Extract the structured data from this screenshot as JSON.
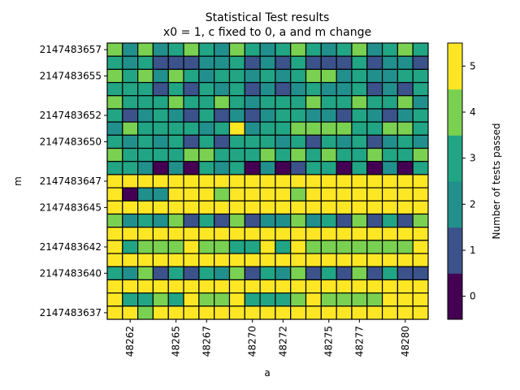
{
  "chart_data": {
    "type": "heatmap",
    "title": "Statistical Test results",
    "subtitle": "x0 = 1, c fixed to 0, a and m change",
    "xlabel": "a",
    "ylabel": "m",
    "x": [
      48261,
      48262,
      48263,
      48264,
      48265,
      48266,
      48267,
      48268,
      48269,
      48270,
      48271,
      48272,
      48273,
      48274,
      48275,
      48276,
      48277,
      48278,
      48279,
      48280,
      48281
    ],
    "y": [
      2147483657,
      2147483656,
      2147483655,
      2147483654,
      2147483653,
      2147483652,
      2147483651,
      2147483650,
      2147483649,
      2147483648,
      2147483647,
      2147483646,
      2147483645,
      2147483644,
      2147483643,
      2147483642,
      2147483641,
      2147483640,
      2147483639,
      2147483638,
      2147483637
    ],
    "x_ticks": [
      48262,
      48265,
      48267,
      48270,
      48272,
      48275,
      48277,
      48280
    ],
    "y_ticks": [
      2147483657,
      2147483655,
      2147483652,
      2147483650,
      2147483647,
      2147483645,
      2147483642,
      2147483640,
      2147483637
    ],
    "values": [
      [
        4,
        2,
        4,
        2,
        3,
        4,
        3,
        2,
        4,
        3,
        2,
        3,
        4,
        3,
        2,
        3,
        4,
        2,
        3,
        4,
        3
      ],
      [
        3,
        2,
        3,
        1,
        1,
        1,
        2,
        2,
        3,
        1,
        2,
        1,
        3,
        1,
        1,
        1,
        3,
        1,
        2,
        2,
        1
      ],
      [
        4,
        3,
        4,
        2,
        4,
        3,
        2,
        3,
        3,
        2,
        3,
        2,
        3,
        4,
        4,
        2,
        3,
        2,
        2,
        3,
        3
      ],
      [
        3,
        3,
        3,
        1,
        3,
        1,
        3,
        2,
        3,
        1,
        2,
        1,
        2,
        3,
        2,
        2,
        3,
        1,
        2,
        1,
        3
      ],
      [
        4,
        3,
        3,
        3,
        4,
        3,
        3,
        4,
        3,
        2,
        3,
        3,
        3,
        4,
        3,
        3,
        4,
        3,
        3,
        4,
        2
      ],
      [
        3,
        1,
        2,
        3,
        2,
        1,
        3,
        1,
        2,
        1,
        2,
        3,
        3,
        2,
        2,
        1,
        3,
        2,
        1,
        2,
        3
      ],
      [
        2,
        4,
        3,
        3,
        3,
        3,
        2,
        3,
        5,
        2,
        3,
        3,
        4,
        4,
        4,
        4,
        3,
        3,
        4,
        4,
        3
      ],
      [
        3,
        2,
        3,
        2,
        3,
        1,
        3,
        1,
        3,
        3,
        3,
        2,
        3,
        1,
        3,
        2,
        3,
        1,
        2,
        3,
        2
      ],
      [
        4,
        3,
        3,
        3,
        3,
        4,
        4,
        3,
        3,
        3,
        4,
        3,
        4,
        3,
        4,
        3,
        3,
        4,
        3,
        3,
        4
      ],
      [
        3,
        3,
        2,
        0,
        2,
        0,
        3,
        2,
        3,
        0,
        2,
        0,
        1,
        3,
        3,
        0,
        3,
        0,
        2,
        0,
        3
      ],
      [
        5,
        5,
        5,
        5,
        5,
        5,
        5,
        5,
        5,
        5,
        5,
        5,
        5,
        5,
        5,
        5,
        5,
        5,
        5,
        5,
        5
      ],
      [
        5,
        0,
        2,
        2,
        5,
        5,
        5,
        4,
        5,
        5,
        5,
        5,
        4,
        5,
        5,
        5,
        5,
        5,
        5,
        5,
        5
      ],
      [
        5,
        5,
        5,
        5,
        5,
        5,
        5,
        5,
        5,
        5,
        5,
        5,
        5,
        5,
        5,
        5,
        5,
        5,
        5,
        5,
        5
      ],
      [
        4,
        2,
        3,
        2,
        4,
        1,
        3,
        1,
        4,
        1,
        2,
        2,
        4,
        2,
        3,
        1,
        4,
        1,
        3,
        1,
        4
      ],
      [
        5,
        5,
        5,
        5,
        5,
        5,
        5,
        5,
        5,
        5,
        5,
        5,
        5,
        5,
        5,
        5,
        5,
        5,
        5,
        5,
        5
      ],
      [
        5,
        3,
        4,
        4,
        4,
        5,
        4,
        4,
        3,
        3,
        5,
        3,
        5,
        4,
        4,
        4,
        4,
        4,
        4,
        4,
        5
      ],
      [
        5,
        5,
        5,
        5,
        5,
        5,
        5,
        5,
        5,
        5,
        5,
        5,
        5,
        5,
        5,
        5,
        5,
        5,
        5,
        5,
        5
      ],
      [
        3,
        2,
        4,
        1,
        3,
        1,
        3,
        2,
        4,
        1,
        3,
        2,
        4,
        1,
        3,
        1,
        4,
        1,
        3,
        1,
        1
      ],
      [
        5,
        5,
        5,
        5,
        5,
        5,
        5,
        5,
        5,
        5,
        5,
        5,
        5,
        5,
        5,
        5,
        5,
        5,
        5,
        5,
        5
      ],
      [
        5,
        3,
        3,
        4,
        3,
        5,
        4,
        4,
        5,
        3,
        3,
        3,
        4,
        5,
        4,
        4,
        4,
        4,
        5,
        5,
        5
      ],
      [
        5,
        5,
        4,
        5,
        5,
        5,
        5,
        5,
        5,
        5,
        5,
        5,
        5,
        5,
        5,
        5,
        5,
        5,
        5,
        5,
        5
      ]
    ],
    "colorbar": {
      "label": "Number of tests passed",
      "ticks": [
        0,
        1,
        2,
        3,
        4,
        5
      ],
      "colors": [
        "#440154",
        "#3b528b",
        "#21908d",
        "#21a585",
        "#7ad151",
        "#fde725"
      ]
    }
  }
}
